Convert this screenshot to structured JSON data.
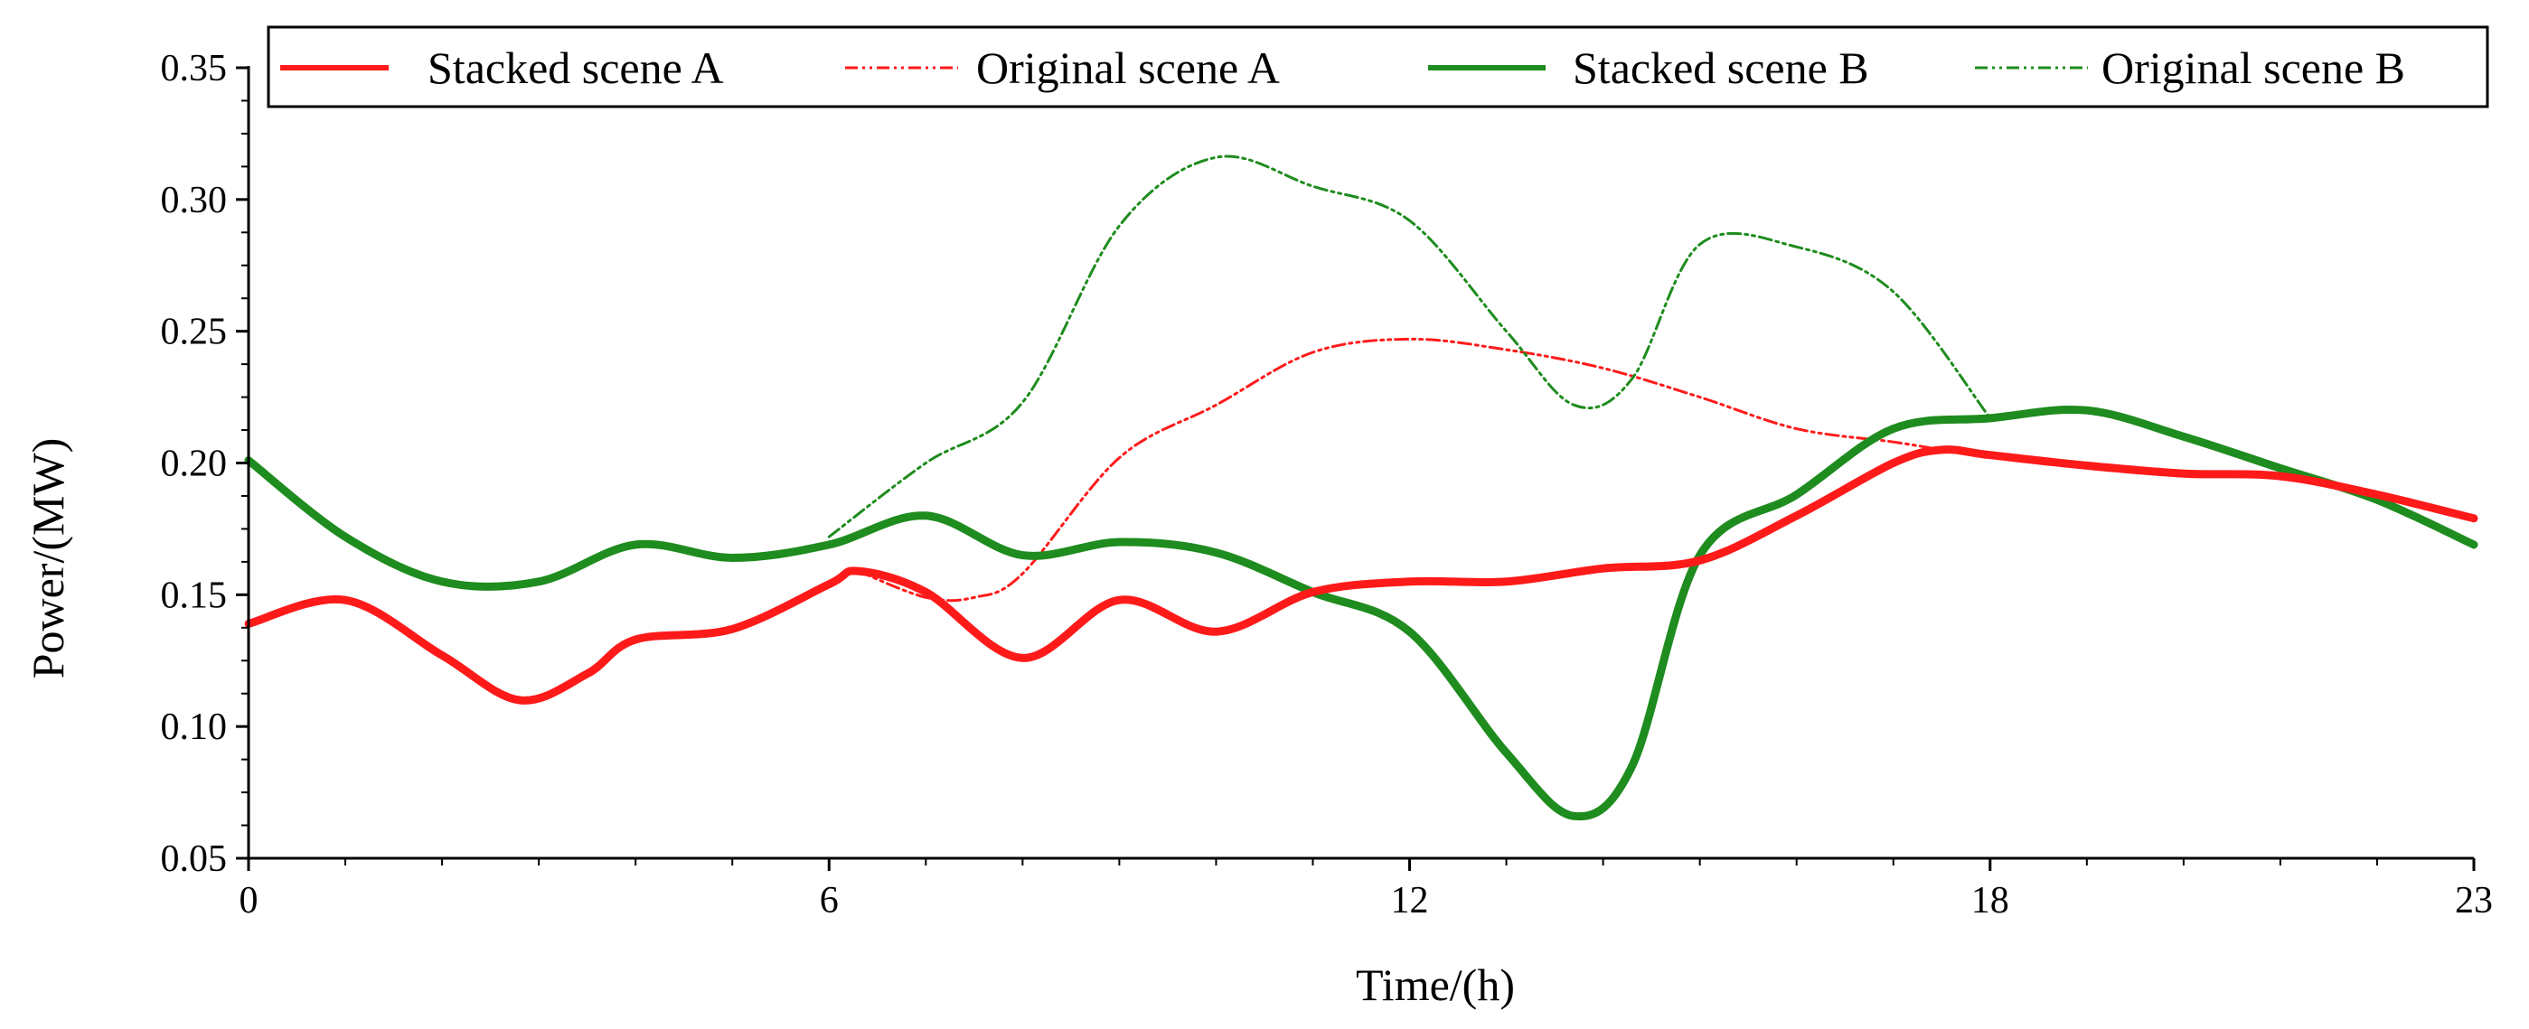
{
  "chart_data": {
    "type": "line",
    "title": "",
    "xlabel": "Time/(h)",
    "ylabel": "Power/(MW)",
    "xlim": [
      0,
      23
    ],
    "ylim": [
      0.05,
      0.35
    ],
    "x_ticks": [
      0,
      6,
      12,
      18,
      23
    ],
    "x_tick_labels": [
      "0",
      "6",
      "12",
      "18",
      "23"
    ],
    "y_ticks": [
      0.05,
      0.1,
      0.15,
      0.2,
      0.25,
      0.3,
      0.35
    ],
    "y_tick_labels": [
      "0.05",
      "0.10",
      "0.15",
      "0.20",
      "0.25",
      "0.30",
      "0.35"
    ],
    "grid": false,
    "legend_position": "top",
    "series": [
      {
        "name": "Stacked scene A",
        "color": "#ff1a1a",
        "style": "solid",
        "weight": "thick",
        "points": [
          [
            0,
            0.139
          ],
          [
            1,
            0.148
          ],
          [
            2,
            0.127
          ],
          [
            2.8,
            0.11
          ],
          [
            3.5,
            0.12
          ],
          [
            4,
            0.133
          ],
          [
            5,
            0.137
          ],
          [
            6,
            0.154
          ],
          [
            6.3,
            0.159
          ],
          [
            7,
            0.151
          ],
          [
            8,
            0.126
          ],
          [
            9,
            0.148
          ],
          [
            10,
            0.136
          ],
          [
            11,
            0.151
          ],
          [
            12,
            0.155
          ],
          [
            13,
            0.155
          ],
          [
            14,
            0.16
          ],
          [
            15,
            0.163
          ],
          [
            16,
            0.18
          ],
          [
            17,
            0.2
          ],
          [
            17.5,
            0.205
          ],
          [
            18,
            0.203
          ],
          [
            19,
            0.199
          ],
          [
            20,
            0.196
          ],
          [
            21,
            0.195
          ],
          [
            22,
            0.188
          ],
          [
            23,
            0.179
          ]
        ]
      },
      {
        "name": "Original scene A",
        "color": "#ff1a1a",
        "style": "dashdotdot",
        "weight": "thin",
        "points": [
          [
            6.3,
            0.159
          ],
          [
            7,
            0.149
          ],
          [
            7.5,
            0.149
          ],
          [
            8,
            0.158
          ],
          [
            9,
            0.202
          ],
          [
            10,
            0.222
          ],
          [
            11,
            0.242
          ],
          [
            12,
            0.247
          ],
          [
            13,
            0.243
          ],
          [
            14,
            0.236
          ],
          [
            15,
            0.225
          ],
          [
            16,
            0.213
          ],
          [
            17,
            0.208
          ],
          [
            17.5,
            0.205
          ]
        ]
      },
      {
        "name": "Stacked scene B",
        "color": "#1e8c1e",
        "style": "solid",
        "weight": "thick",
        "points": [
          [
            0,
            0.201
          ],
          [
            1,
            0.172
          ],
          [
            2,
            0.155
          ],
          [
            3,
            0.155
          ],
          [
            4,
            0.169
          ],
          [
            5,
            0.164
          ],
          [
            6,
            0.169
          ],
          [
            7,
            0.18
          ],
          [
            8,
            0.165
          ],
          [
            9,
            0.17
          ],
          [
            10,
            0.166
          ],
          [
            11,
            0.151
          ],
          [
            12,
            0.136
          ],
          [
            13,
            0.09
          ],
          [
            13.7,
            0.066
          ],
          [
            14.3,
            0.085
          ],
          [
            15,
            0.165
          ],
          [
            16,
            0.188
          ],
          [
            17,
            0.213
          ],
          [
            18,
            0.217
          ],
          [
            19,
            0.22
          ],
          [
            20,
            0.21
          ],
          [
            21,
            0.198
          ],
          [
            22,
            0.186
          ],
          [
            23,
            0.169
          ]
        ]
      },
      {
        "name": "Original scene B",
        "color": "#1e8c1e",
        "style": "dashdotdot",
        "weight": "thin",
        "points": [
          [
            6,
            0.172
          ],
          [
            7,
            0.2
          ],
          [
            8,
            0.223
          ],
          [
            9,
            0.29
          ],
          [
            10,
            0.316
          ],
          [
            11,
            0.305
          ],
          [
            12,
            0.292
          ],
          [
            13,
            0.25
          ],
          [
            13.7,
            0.222
          ],
          [
            14.3,
            0.232
          ],
          [
            15,
            0.283
          ],
          [
            16,
            0.282
          ],
          [
            17,
            0.265
          ],
          [
            18,
            0.217
          ]
        ]
      }
    ]
  }
}
